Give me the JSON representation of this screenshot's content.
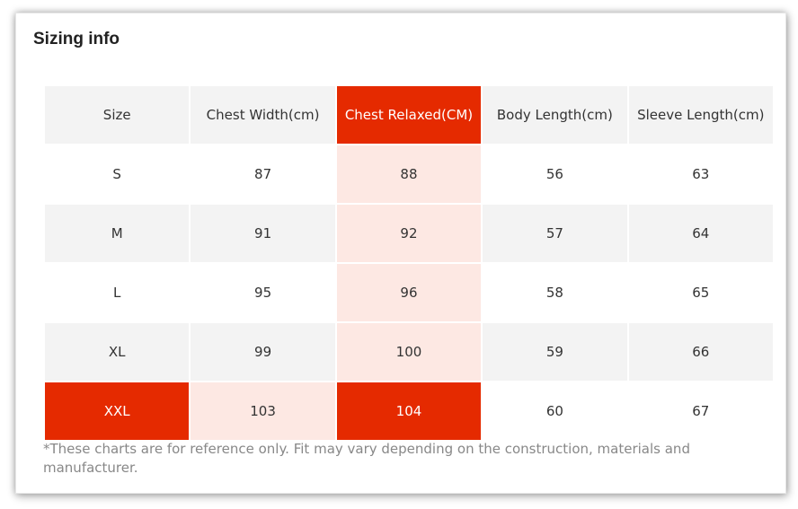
{
  "title": "Sizing info",
  "headers": [
    "Size",
    "Chest Width(cm)",
    "Chest Relaxed(CM)",
    "Body Length(cm)",
    "Sleeve Length(cm)"
  ],
  "rows": [
    [
      "S",
      "87",
      "88",
      "56",
      "63"
    ],
    [
      "M",
      "91",
      "92",
      "57",
      "64"
    ],
    [
      "L",
      "95",
      "96",
      "58",
      "65"
    ],
    [
      "XL",
      "99",
      "100",
      "59",
      "66"
    ],
    [
      "XXL",
      "103",
      "104",
      "60",
      "67"
    ]
  ],
  "highlight": {
    "column": "Chest Relaxed(CM)",
    "row": "XXL",
    "strong_color": "#e52a00",
    "soft_color": "#fde8e3"
  },
  "note": "*These charts are for reference only. Fit may vary depending on the construction, materials and manufacturer."
}
